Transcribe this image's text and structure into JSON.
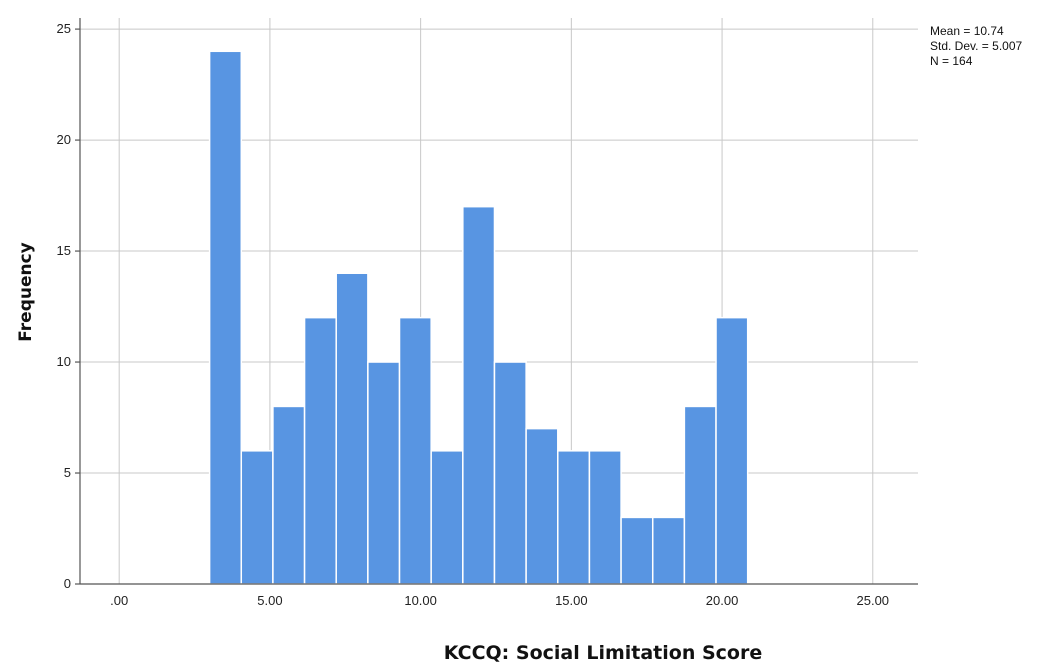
{
  "chart_data": {
    "type": "bar",
    "subtype": "histogram",
    "xlabel": "KCCQ: Social Limitation Score",
    "ylabel": "Frequency",
    "xlim": [
      -1.3,
      26.5
    ],
    "ylim": [
      0,
      25.5
    ],
    "x_ticks": [
      0,
      5,
      10,
      15,
      20,
      25
    ],
    "x_tick_labels": [
      ".00",
      "5.00",
      "10.00",
      "15.00",
      "20.00",
      "25.00"
    ],
    "y_ticks": [
      0,
      5,
      10,
      15,
      20,
      25
    ],
    "y_tick_labels": [
      "0",
      "5",
      "10",
      "15",
      "20",
      "25"
    ],
    "grid": true,
    "bar_color": "#5895e2",
    "bins": [
      {
        "start": 3.0,
        "end": 4.05,
        "count": 24
      },
      {
        "start": 4.05,
        "end": 5.1,
        "count": 6
      },
      {
        "start": 5.1,
        "end": 6.15,
        "count": 8
      },
      {
        "start": 6.15,
        "end": 7.2,
        "count": 12
      },
      {
        "start": 7.2,
        "end": 8.25,
        "count": 14
      },
      {
        "start": 8.25,
        "end": 9.3,
        "count": 10
      },
      {
        "start": 9.3,
        "end": 10.35,
        "count": 12
      },
      {
        "start": 10.35,
        "end": 11.4,
        "count": 6
      },
      {
        "start": 11.4,
        "end": 12.45,
        "count": 17
      },
      {
        "start": 12.45,
        "end": 13.5,
        "count": 10
      },
      {
        "start": 13.5,
        "end": 14.55,
        "count": 7
      },
      {
        "start": 14.55,
        "end": 15.6,
        "count": 6
      },
      {
        "start": 15.6,
        "end": 16.65,
        "count": 6
      },
      {
        "start": 16.65,
        "end": 17.7,
        "count": 3
      },
      {
        "start": 17.7,
        "end": 18.75,
        "count": 3
      },
      {
        "start": 18.75,
        "end": 19.8,
        "count": 8
      },
      {
        "start": 19.8,
        "end": 20.85,
        "count": 12
      }
    ],
    "stats": {
      "mean": "Mean = 10.74",
      "std_dev": "Std. Dev. = 5.007",
      "n": "N = 164"
    }
  }
}
